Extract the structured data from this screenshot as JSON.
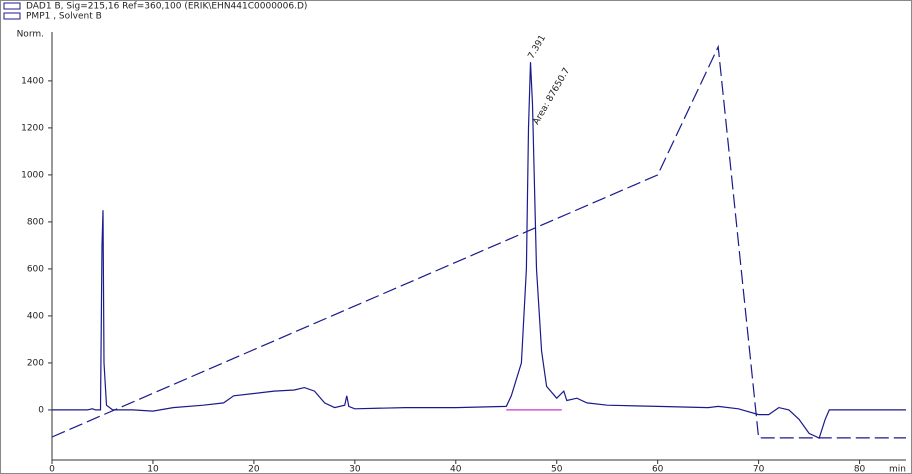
{
  "chart_data": {
    "type": "line",
    "ylabel": "Norm.",
    "xlabel": "min",
    "xlim": [
      0,
      84.6
    ],
    "ylim": [
      -213,
      1608
    ],
    "xticks": [
      0,
      10,
      20,
      30,
      40,
      50,
      60,
      70,
      80
    ],
    "yticks": [
      0,
      200,
      400,
      600,
      800,
      1000,
      1200,
      1400
    ],
    "annotations": [
      {
        "text": "7.391",
        "x": 47.4,
        "y": 1480
      },
      {
        "text": "Area: 87650.7",
        "x": 47.9,
        "y": 1200
      }
    ],
    "series": [
      {
        "name": "DAD1 B, Sig=215,16 Ref=360,100 (ERIK\\EHN441C0000006.D)",
        "color": "#1a1a8c",
        "dash": false,
        "x": [
          0,
          3.5,
          4,
          4.3,
          4.8,
          4.95,
          5.05,
          5.15,
          5.4,
          6,
          8,
          10,
          12,
          15,
          17,
          18,
          20,
          22,
          24,
          25,
          26,
          27,
          28,
          29,
          29.2,
          29.4,
          30,
          35,
          40,
          45,
          45.5,
          46.5,
          47,
          47.2,
          47.4,
          47.6,
          48,
          48.5,
          49,
          50,
          50.7,
          51,
          52,
          53,
          55,
          60,
          65,
          66,
          68,
          70,
          71,
          72,
          73,
          74,
          75,
          76,
          76.6,
          77,
          84.6
        ],
        "values": [
          0,
          0,
          5,
          0,
          0,
          700,
          850,
          200,
          20,
          0,
          0,
          -5,
          10,
          20,
          30,
          60,
          70,
          80,
          85,
          95,
          80,
          30,
          10,
          20,
          60,
          15,
          5,
          10,
          10,
          15,
          60,
          200,
          600,
          1200,
          1480,
          1300,
          600,
          250,
          100,
          50,
          80,
          40,
          50,
          30,
          20,
          15,
          10,
          15,
          5,
          -20,
          -20,
          10,
          0,
          -40,
          -100,
          -120,
          -40,
          0,
          0
        ]
      },
      {
        "name": "PMP1 , Solvent B",
        "color": "#1a1a8c",
        "dash": true,
        "x": [
          0,
          60,
          66,
          70,
          84.6
        ],
        "values": [
          -115,
          1000,
          1545,
          -119,
          -119
        ]
      },
      {
        "color": "#cc33cc",
        "dash": false,
        "x": [
          45,
          50.5
        ],
        "values": [
          0,
          0
        ]
      }
    ]
  }
}
